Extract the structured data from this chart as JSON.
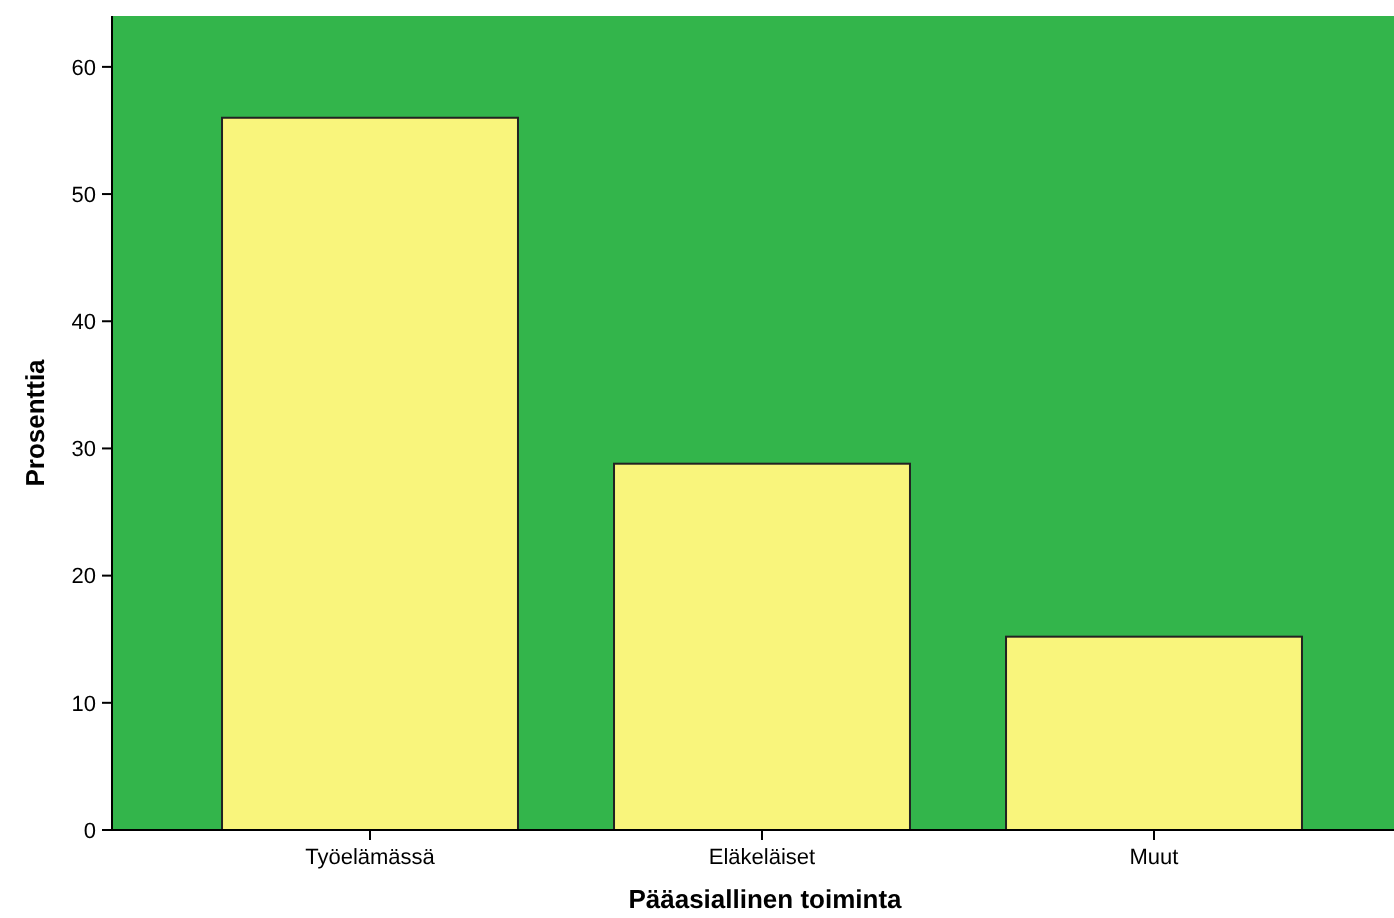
{
  "chart_data": {
    "type": "bar",
    "xlabel": "Pääasiallinen toiminta",
    "ylabel": "Prosenttia",
    "categories": [
      "Työelämässä",
      "Eläkeläiset",
      "Muut"
    ],
    "values": [
      56,
      28.8,
      15.2
    ],
    "color": "#f9f57c",
    "ylim": [
      0,
      64
    ],
    "yticks": [
      0,
      10,
      20,
      30,
      40,
      50,
      60
    ],
    "grid": false
  }
}
